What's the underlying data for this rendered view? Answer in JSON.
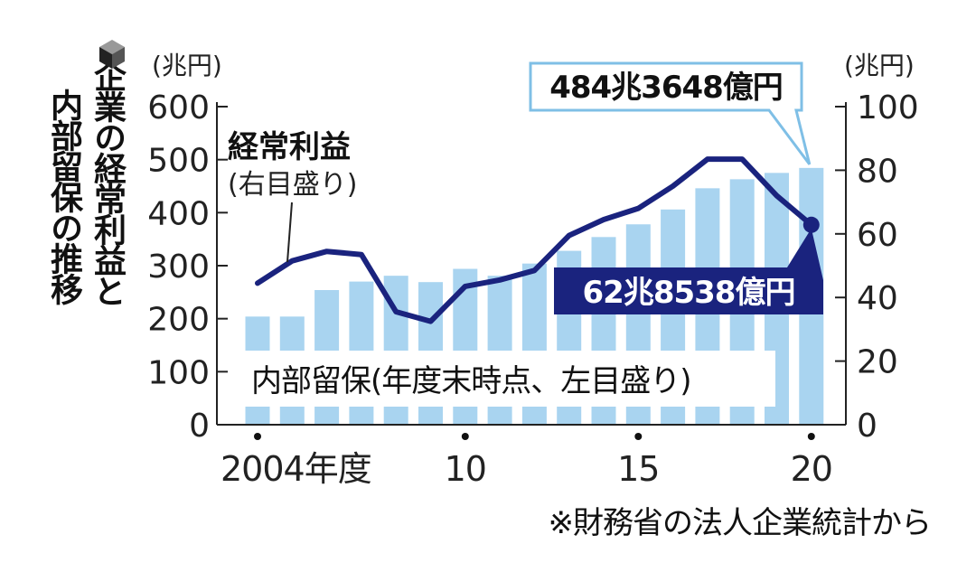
{
  "title_col1": "企業の経常利益と",
  "title_col2": "内部留保の推移",
  "source_note": "※財務省の法人企業統計から",
  "chart_data": {
    "type": "bar",
    "x": [
      2004,
      2005,
      2006,
      2007,
      2008,
      2009,
      2010,
      2011,
      2012,
      2013,
      2014,
      2015,
      2016,
      2017,
      2018,
      2019,
      2020
    ],
    "x_tick_labels": [
      {
        "x": 2004,
        "label": "2004年度"
      },
      {
        "x": 2010,
        "label": "10"
      },
      {
        "x": 2015,
        "label": "15"
      },
      {
        "x": 2020,
        "label": "20"
      }
    ],
    "left_axis": {
      "unit": "(兆円)",
      "ylim": [
        0,
        600
      ],
      "ticks": [
        0,
        100,
        200,
        300,
        400,
        500,
        600
      ]
    },
    "right_axis": {
      "unit": "(兆円)",
      "ylim": [
        0,
        100
      ],
      "ticks": [
        0,
        20,
        40,
        60,
        80,
        100
      ]
    },
    "series": [
      {
        "name": "内部留保(年度末時点、左目盛り)",
        "type": "bar",
        "axis": "left",
        "color": "#a9d4f0",
        "values": [
          204,
          204,
          254,
          270,
          281,
          269,
          294,
          281,
          304,
          328,
          354,
          378,
          406,
          446,
          463,
          475,
          484.36
        ]
      },
      {
        "name_line1": "経常利益",
        "name_line2": "(右目盛り)",
        "type": "line",
        "axis": "right",
        "color": "#1a237e",
        "values": [
          44.5,
          51.5,
          54.5,
          53.5,
          35.5,
          32.5,
          43.5,
          45.5,
          48.5,
          59.5,
          64.5,
          68.0,
          75.0,
          83.5,
          83.5,
          72.0,
          62.85
        ]
      }
    ],
    "annotations": {
      "bar_last": "484兆3648億円",
      "line_last": "62兆8538億円"
    },
    "grid": false,
    "legend": "inline-labels"
  }
}
